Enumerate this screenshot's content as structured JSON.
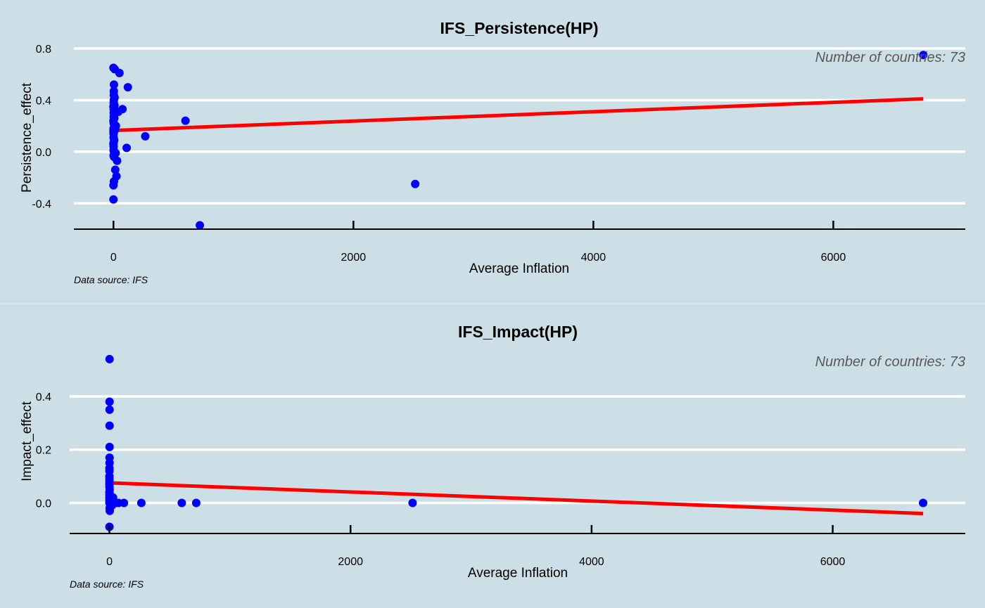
{
  "chart_data": [
    {
      "type": "scatter",
      "title": "IFS_Persistence(HP)",
      "xlabel": "Average Inflation",
      "ylabel": "Persistence_effect",
      "annotation": "Number of countries: 73",
      "caption": "Data source: IFS",
      "xlim": [
        -330,
        7100
      ],
      "ylim": [
        -0.6,
        0.86
      ],
      "x_ticks": [
        0,
        2000,
        4000,
        6000
      ],
      "y_ticks": [
        -0.4,
        0.0,
        0.4,
        0.8
      ],
      "x_tick_labels": [
        "0",
        "2000",
        "4000",
        "6000"
      ],
      "y_tick_labels": [
        "-0.4",
        "0.0",
        "0.4",
        "0.8"
      ],
      "grid": true,
      "colors": {
        "points": "#0000ff",
        "fit_line": "#ff0000",
        "background": "#cddfe6"
      },
      "points": [
        {
          "x": 6750,
          "y": 0.75
        },
        {
          "x": 2515,
          "y": -0.25
        },
        {
          "x": 720,
          "y": -0.57
        },
        {
          "x": 600,
          "y": 0.24
        },
        {
          "x": 265,
          "y": 0.12
        },
        {
          "x": 120,
          "y": 0.5
        },
        {
          "x": 110,
          "y": 0.03
        },
        {
          "x": 75,
          "y": 0.33
        },
        {
          "x": 50,
          "y": 0.61
        },
        {
          "x": 40,
          "y": 0.31
        },
        {
          "x": 30,
          "y": -0.07
        },
        {
          "x": 25,
          "y": -0.19
        },
        {
          "x": 20,
          "y": 0.2
        },
        {
          "x": 18,
          "y": -0.01
        },
        {
          "x": 15,
          "y": -0.14
        },
        {
          "x": 12,
          "y": 0.17
        },
        {
          "x": 10,
          "y": 0.64
        },
        {
          "x": 9,
          "y": 0.42
        },
        {
          "x": 8,
          "y": 0.36
        },
        {
          "x": 7,
          "y": 0.26
        },
        {
          "x": 6,
          "y": 0.09
        },
        {
          "x": 5,
          "y": -0.04
        },
        {
          "x": 4,
          "y": -0.23
        },
        {
          "x": 4,
          "y": 0.52
        },
        {
          "x": 3,
          "y": 0.47
        },
        {
          "x": 3,
          "y": 0.44
        },
        {
          "x": 3,
          "y": 0.4
        },
        {
          "x": 2,
          "y": 0.38
        },
        {
          "x": 2,
          "y": 0.33
        },
        {
          "x": 2,
          "y": 0.3
        },
        {
          "x": 2,
          "y": 0.27
        },
        {
          "x": 2,
          "y": 0.22
        },
        {
          "x": 1,
          "y": 0.18
        },
        {
          "x": 1,
          "y": 0.14
        },
        {
          "x": 1,
          "y": 0.11
        },
        {
          "x": 1,
          "y": 0.07
        },
        {
          "x": 1,
          "y": 0.04
        },
        {
          "x": 1,
          "y": 0.01
        },
        {
          "x": 1,
          "y": -0.03
        },
        {
          "x": 0,
          "y": -0.26
        },
        {
          "x": 0,
          "y": -0.37
        },
        {
          "x": 0,
          "y": 0.65
        },
        {
          "x": 0,
          "y": 0.35
        },
        {
          "x": 0,
          "y": 0.24
        },
        {
          "x": 0,
          "y": 0.16
        },
        {
          "x": 0,
          "y": 0.06
        }
      ],
      "fit_line": {
        "x": [
          5,
          6750
        ],
        "y": [
          0.165,
          0.41
        ]
      }
    },
    {
      "type": "scatter",
      "title": "IFS_Impact(HP)",
      "xlabel": "Average Inflation",
      "ylabel": "Impact_effect",
      "annotation": "Number of countries: 73",
      "caption": "Data source: IFS",
      "xlim": [
        -330,
        7100
      ],
      "ylim": [
        -0.115,
        0.59
      ],
      "x_ticks": [
        0,
        2000,
        4000,
        6000
      ],
      "y_ticks": [
        0.0,
        0.2,
        0.4
      ],
      "x_tick_labels": [
        "0",
        "2000",
        "4000",
        "6000"
      ],
      "y_tick_labels": [
        "0.0",
        "0.2",
        "0.4"
      ],
      "grid": true,
      "colors": {
        "points": "#0000ff",
        "fit_line": "#ff0000",
        "background": "#cddfe6"
      },
      "points": [
        {
          "x": 6750,
          "y": 0.0
        },
        {
          "x": 2515,
          "y": 0.0
        },
        {
          "x": 720,
          "y": 0.0
        },
        {
          "x": 600,
          "y": 0.0
        },
        {
          "x": 265,
          "y": 0.0
        },
        {
          "x": 120,
          "y": 0.0
        },
        {
          "x": 75,
          "y": 0.0
        },
        {
          "x": 50,
          "y": 0.0
        },
        {
          "x": 30,
          "y": 0.02
        },
        {
          "x": 20,
          "y": -0.01
        },
        {
          "x": 10,
          "y": 0.01
        },
        {
          "x": 5,
          "y": 0.03
        },
        {
          "x": 3,
          "y": -0.03
        },
        {
          "x": 2,
          "y": -0.02
        },
        {
          "x": 2,
          "y": 0.05
        },
        {
          "x": 1,
          "y": 0.54
        },
        {
          "x": 1,
          "y": 0.38
        },
        {
          "x": 1,
          "y": 0.35
        },
        {
          "x": 1,
          "y": 0.29
        },
        {
          "x": 1,
          "y": 0.21
        },
        {
          "x": 1,
          "y": 0.17
        },
        {
          "x": 1,
          "y": 0.15
        },
        {
          "x": 0,
          "y": 0.13
        },
        {
          "x": 0,
          "y": 0.12
        },
        {
          "x": 0,
          "y": 0.1
        },
        {
          "x": 0,
          "y": 0.09
        },
        {
          "x": 0,
          "y": 0.08
        },
        {
          "x": 0,
          "y": 0.07
        },
        {
          "x": 0,
          "y": 0.06
        },
        {
          "x": 0,
          "y": 0.04
        },
        {
          "x": 0,
          "y": 0.03
        },
        {
          "x": 0,
          "y": 0.02
        },
        {
          "x": 0,
          "y": 0.01
        },
        {
          "x": 0,
          "y": 0.0
        },
        {
          "x": 0,
          "y": -0.09
        }
      ],
      "fit_line": {
        "x": [
          5,
          6750
        ],
        "y": [
          0.075,
          -0.04
        ]
      }
    }
  ]
}
